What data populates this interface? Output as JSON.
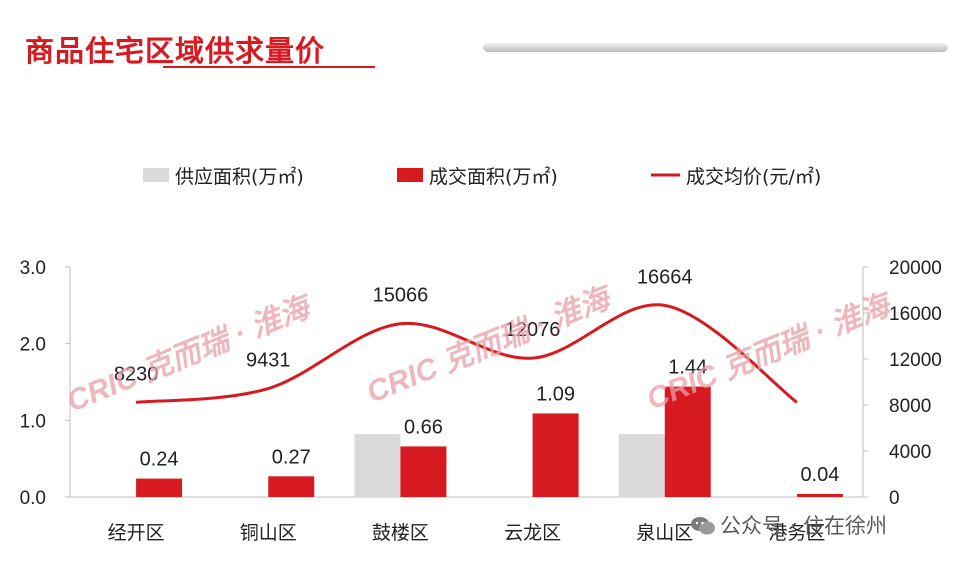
{
  "title": "商品住宅区域供求量价",
  "footer": {
    "text": "公众号 · 住在徐州",
    "icon": "wechat-icon"
  },
  "watermark": "CRIC 克而瑞 · 淮海",
  "colors": {
    "supply": "#d9d9d9",
    "deal": "#d71920",
    "price_line": "#d71920",
    "title": "#d71920"
  },
  "chart_data": {
    "type": "bar",
    "categories": [
      "经开区",
      "铜山区",
      "鼓楼区",
      "云龙区",
      "泉山区",
      "港务区"
    ],
    "series": [
      {
        "name": "供应面积(万㎡)",
        "type": "bar",
        "axis": "left",
        "values": [
          0,
          0,
          0.82,
          0,
          0.82,
          0
        ]
      },
      {
        "name": "成交面积(万㎡)",
        "type": "bar",
        "axis": "left",
        "values": [
          0.24,
          0.27,
          0.66,
          1.09,
          1.44,
          0.04
        ],
        "labels": [
          "0.24",
          "0.27",
          "0.66",
          "1.09",
          "1.44",
          "0.04"
        ]
      },
      {
        "name": "成交均价(元/㎡)",
        "type": "line",
        "axis": "right",
        "values": [
          8230,
          9431,
          15066,
          12076,
          16664,
          8230
        ],
        "labels": [
          "8230",
          "9431",
          "15066",
          "12076",
          "16664",
          ""
        ]
      }
    ],
    "y_left": {
      "ticks": [
        "0.0",
        "1.0",
        "2.0",
        "3.0"
      ],
      "range": [
        0,
        3
      ]
    },
    "y_right": {
      "ticks": [
        "0",
        "4000",
        "8000",
        "12000",
        "16000",
        "20000"
      ],
      "range": [
        0,
        20000
      ]
    },
    "legend_position": "top",
    "grid": false
  }
}
